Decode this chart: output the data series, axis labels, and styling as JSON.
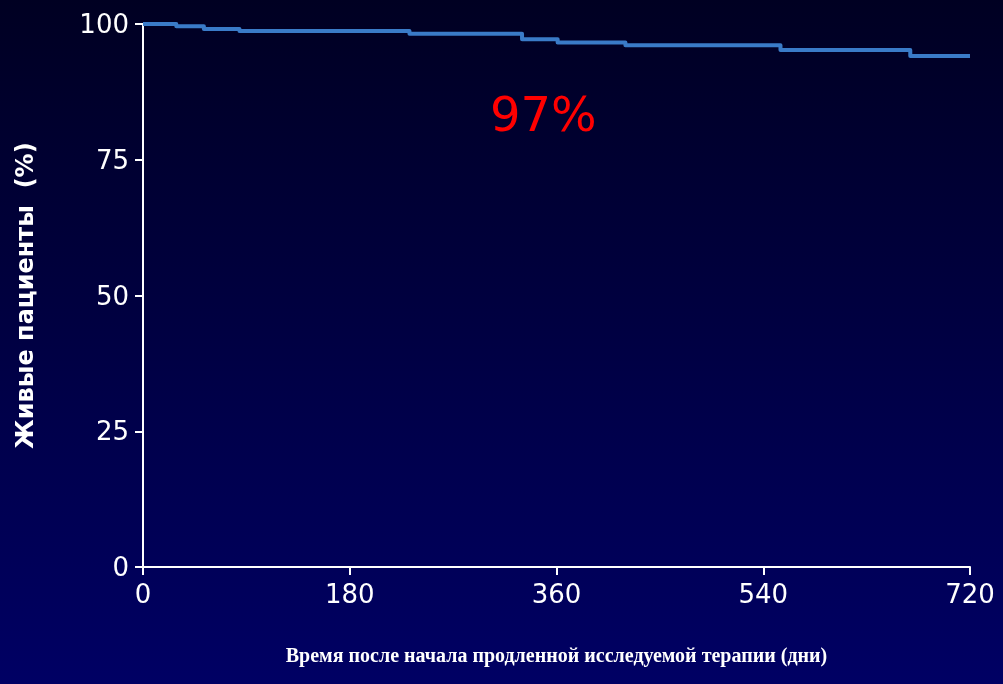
{
  "chart_data": {
    "type": "step",
    "xlabel": "Время после начала продленной исследуемой терапии (дни)",
    "ylabel": "Живые пациенты  (%)",
    "annotations": [
      "97%"
    ],
    "x": [
      0,
      29,
      53,
      84,
      232,
      330,
      361,
      420,
      555,
      668,
      720
    ],
    "series": [
      {
        "color": "#3a7bc8",
        "values": [
          100,
          99.6,
          99.1,
          98.7,
          98.2,
          97.2,
          96.6,
          96.1,
          95.2,
          94.1,
          94.1
        ]
      }
    ],
    "xlim": [
      0,
      720
    ],
    "xticks": [
      0,
      180,
      360,
      540,
      720
    ],
    "ylim": [
      0,
      100
    ],
    "yticks": [
      0,
      25,
      50,
      75,
      100
    ],
    "grid": false,
    "marker": "none",
    "line_style": "solid"
  }
}
